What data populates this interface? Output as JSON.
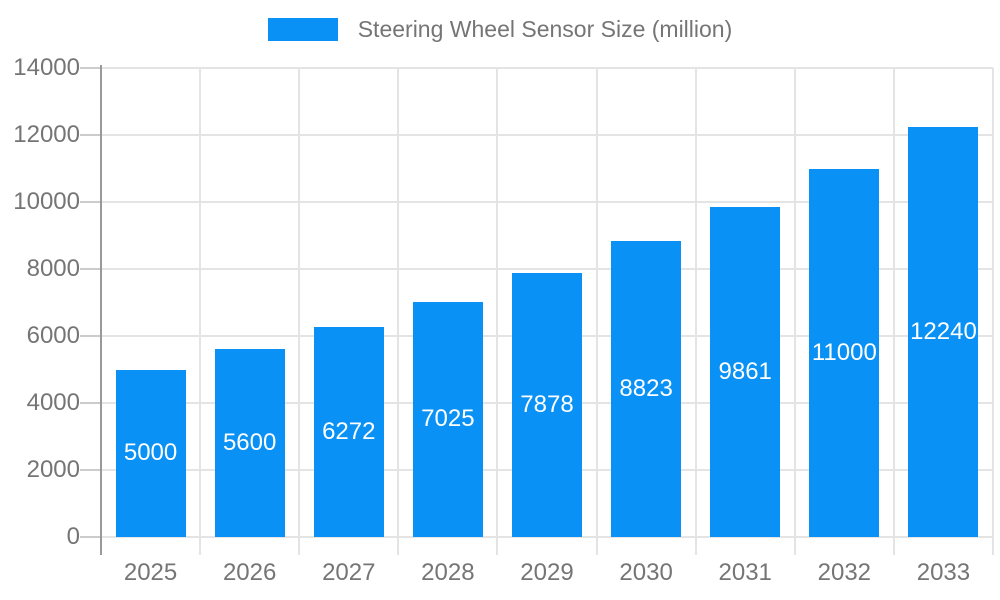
{
  "chart_data": {
    "type": "bar",
    "title": "Steering Wheel Sensor Size (million)",
    "categories": [
      "2025",
      "2026",
      "2027",
      "2028",
      "2029",
      "2030",
      "2031",
      "2032",
      "2033"
    ],
    "series": [
      {
        "name": "Steering Wheel Sensor Size (million)",
        "values": [
          5000,
          5600,
          6272,
          7025,
          7878,
          8823,
          9861,
          11000,
          12240
        ]
      }
    ],
    "value_labels": [
      "5000",
      "5600",
      "6272",
      "7025",
      "7878",
      "8823",
      "9861",
      "11000",
      "12240"
    ],
    "ylim": [
      0,
      14000
    ],
    "ytick_step": 2000,
    "ytick_labels": [
      "0",
      "2000",
      "4000",
      "6000",
      "8000",
      "10000",
      "12000",
      "14000"
    ],
    "legend_position": "top",
    "grid": true
  },
  "colors": {
    "bar": "#0991f5",
    "axis_text": "#757575",
    "grid_line": "#e4e4e4",
    "tick_line": "#cccccc",
    "axis_line": "#999999",
    "value_label": "#ffffff",
    "background": "#ffffff"
  }
}
